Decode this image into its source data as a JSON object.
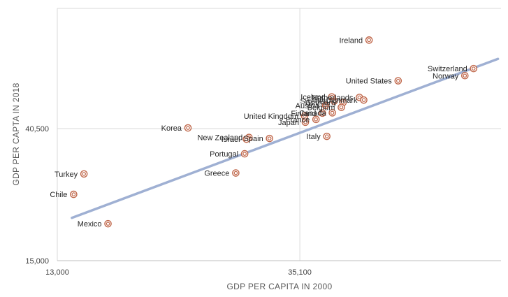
{
  "chart_data": {
    "type": "scatter",
    "title": "",
    "xlabel": "GDP PER CAPITA IN 2000",
    "ylabel": "GDP PER CAPTA IN 2018",
    "x_scale": "log",
    "y_scale": "log",
    "xlim": [
      13000,
      80000
    ],
    "ylim": [
      15000,
      100000
    ],
    "x_ticks": [
      13000,
      35100
    ],
    "x_tick_labels": [
      "13,000",
      "35,100"
    ],
    "y_ticks": [
      15000,
      40500
    ],
    "y_tick_labels": [
      "15,000",
      "40,500"
    ],
    "grid": true,
    "legend": "none",
    "colors": {
      "marker": "#c0674a",
      "trendline": "#9fb0d3",
      "grid": "#d9d9d9",
      "axis": "#bfbfbf"
    },
    "trendline": {
      "type": "linear",
      "x": [
        13800,
        79000
      ],
      "y": [
        20700,
        68400
      ]
    },
    "points": [
      {
        "label": "Ireland",
        "x": 46600,
        "y": 78800
      },
      {
        "label": "Switzerland",
        "x": 71500,
        "y": 63600
      },
      {
        "label": "Norway",
        "x": 69000,
        "y": 60300
      },
      {
        "label": "United States",
        "x": 52500,
        "y": 58000
      },
      {
        "label": "Iceland",
        "x": 40000,
        "y": 51400
      },
      {
        "label": "Netherlands",
        "x": 44800,
        "y": 51200
      },
      {
        "label": "Denmark",
        "x": 45600,
        "y": 50200
      },
      {
        "label": "Sweden",
        "x": 40400,
        "y": 49800
      },
      {
        "label": "Germany",
        "x": 41900,
        "y": 49300
      },
      {
        "label": "Austria",
        "x": 39000,
        "y": 48200
      },
      {
        "label": "Belgium",
        "x": 41600,
        "y": 47500
      },
      {
        "label": "Canada",
        "x": 40100,
        "y": 45600
      },
      {
        "label": "Finland",
        "x": 38500,
        "y": 45500
      },
      {
        "label": "United Kingdom",
        "x": 35800,
        "y": 44500
      },
      {
        "label": "France",
        "x": 37500,
        "y": 43400
      },
      {
        "label": "Japan",
        "x": 35900,
        "y": 42500
      },
      {
        "label": "Korea",
        "x": 22200,
        "y": 40700
      },
      {
        "label": "Italy",
        "x": 39200,
        "y": 38200
      },
      {
        "label": "New Zealand",
        "x": 28500,
        "y": 37900
      },
      {
        "label": "Israel",
        "x": 28200,
        "y": 37400
      },
      {
        "label": "Spain",
        "x": 31000,
        "y": 37600
      },
      {
        "label": "Portugal",
        "x": 28000,
        "y": 33500
      },
      {
        "label": "Greece",
        "x": 27000,
        "y": 29000
      },
      {
        "label": "Turkey",
        "x": 14500,
        "y": 28800
      },
      {
        "label": "Chile",
        "x": 13900,
        "y": 24700
      },
      {
        "label": "Mexico",
        "x": 16000,
        "y": 19800
      }
    ]
  }
}
